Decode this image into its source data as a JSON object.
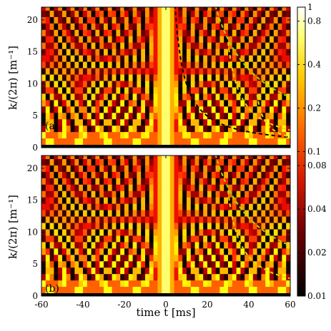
{
  "chart_data": [
    {
      "type": "heatmap",
      "panel_label": "(a)",
      "xlabel": "",
      "ylabel": "k/(2π) [m⁻¹]",
      "xlim": [
        -60,
        60
      ],
      "ylim": [
        0,
        22
      ],
      "x_ticks": [],
      "y_ticks": [
        0,
        5,
        10,
        15,
        20
      ],
      "rows_k": [
        1,
        2,
        3,
        4,
        5,
        6,
        7,
        8,
        9,
        10,
        11,
        12,
        13,
        14,
        15,
        16,
        17,
        18,
        19,
        20,
        21,
        22
      ],
      "ridge_spacing_ms": 14,
      "overlay_curves": [
        {
          "color": "#000000",
          "style": "dashed",
          "branch": "right",
          "t_offset_ms": 0,
          "t_scale": 4.5,
          "x_range": [
            0,
            60
          ]
        },
        {
          "color": "#9be000",
          "style": "dashed",
          "branch": "right",
          "t_offset_ms": 4,
          "t_scale": 9.5,
          "x_range": [
            4,
            60
          ]
        },
        {
          "color": "#d8e000",
          "style": "dashed",
          "branch": "right",
          "t_offset_ms": 24,
          "t_scale": 4.5,
          "x_range": [
            30,
            60
          ]
        },
        {
          "color": "#d8e000",
          "style": "dashed",
          "branch": "right",
          "t_offset_ms": 40,
          "t_scale": 2.6,
          "x_range": [
            44,
            60
          ]
        }
      ]
    },
    {
      "type": "heatmap",
      "panel_label": "(b)",
      "xlabel": "time t [ms]",
      "ylabel": "k/(2π) [m⁻¹]",
      "xlim": [
        -60,
        60
      ],
      "ylim": [
        0,
        22
      ],
      "x_ticks": [
        -60,
        -40,
        -20,
        0,
        20,
        40,
        60
      ],
      "y_ticks": [
        0,
        5,
        10,
        15,
        20
      ],
      "rows_k": [
        1,
        2,
        3,
        4,
        5,
        6,
        7,
        8,
        9,
        10,
        11,
        12,
        13,
        14,
        15,
        16,
        17,
        18,
        19,
        20,
        21,
        22
      ],
      "ridge_spacing_ms": 14,
      "overlay_curves": [
        {
          "color": "#9be000",
          "style": "dashed",
          "branch": "right",
          "t_offset_ms": 4,
          "t_scale": 9.5,
          "x_range": [
            4,
            60
          ]
        },
        {
          "color": "#d8e000",
          "style": "dashed",
          "branch": "right",
          "t_offset_ms": 24,
          "t_scale": 4.5,
          "x_range": [
            30,
            60
          ]
        }
      ]
    }
  ],
  "colorbar": {
    "scale": "log",
    "colormap": "hot",
    "range": [
      0.01,
      1
    ],
    "tick_labels": [
      "1",
      "0.8",
      "0.4",
      "0.2",
      "0.1",
      "0.08",
      "0.04",
      "0.02",
      "0.01"
    ],
    "tick_values": [
      1,
      0.8,
      0.4,
      0.2,
      0.1,
      0.08,
      0.04,
      0.02,
      0.01
    ]
  }
}
